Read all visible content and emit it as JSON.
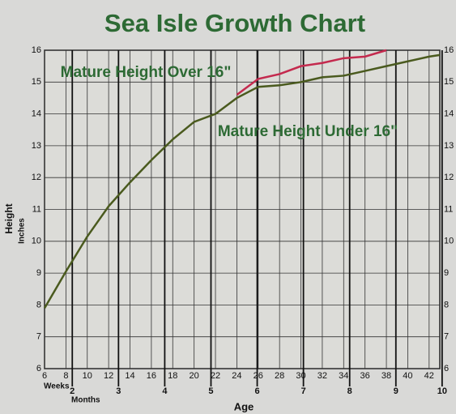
{
  "chart_data": {
    "type": "line",
    "title": "Sea Isle Growth Chart",
    "annotations": [
      "Mature Height Over 16\"",
      "Mature Height Under 16\""
    ],
    "x_label": "Age",
    "x_unit_label": "Weeks",
    "x2_unit_label": "Months",
    "y_label": "Height",
    "y_unit_label": "Inches",
    "x": [
      6,
      8,
      10,
      12,
      14,
      16,
      18,
      20,
      22,
      24,
      26,
      28,
      30,
      32,
      34,
      36,
      38,
      40,
      42,
      43
    ],
    "series": [
      {
        "name": "Mature Height Over 16\"",
        "color": "#c42a4e",
        "values": [
          null,
          null,
          null,
          null,
          null,
          null,
          null,
          null,
          null,
          14.6,
          15.1,
          15.25,
          15.5,
          15.6,
          15.75,
          15.8,
          16.0,
          null,
          null,
          null
        ]
      },
      {
        "name": "Mature Height Under 16\"",
        "color": "#4a5a1e",
        "values": [
          7.9,
          9.05,
          10.15,
          11.1,
          11.85,
          12.55,
          13.2,
          13.75,
          14.0,
          14.5,
          14.85,
          14.9,
          15.0,
          15.15,
          15.2,
          15.35,
          15.5,
          15.65,
          15.8,
          15.85
        ]
      }
    ],
    "xlim": [
      6,
      43
    ],
    "xticks": [
      6,
      8,
      10,
      12,
      14,
      16,
      18,
      20,
      22,
      24,
      26,
      28,
      30,
      32,
      34,
      36,
      38,
      40,
      42
    ],
    "x2lim": [
      1.4,
      9.95
    ],
    "x2ticks": [
      2,
      3,
      4,
      5,
      6,
      7,
      8,
      9,
      10
    ],
    "ylim": [
      6,
      16
    ],
    "yticks": [
      6,
      7,
      8,
      9,
      10,
      11,
      12,
      13,
      14,
      15,
      16
    ],
    "grid": true
  }
}
